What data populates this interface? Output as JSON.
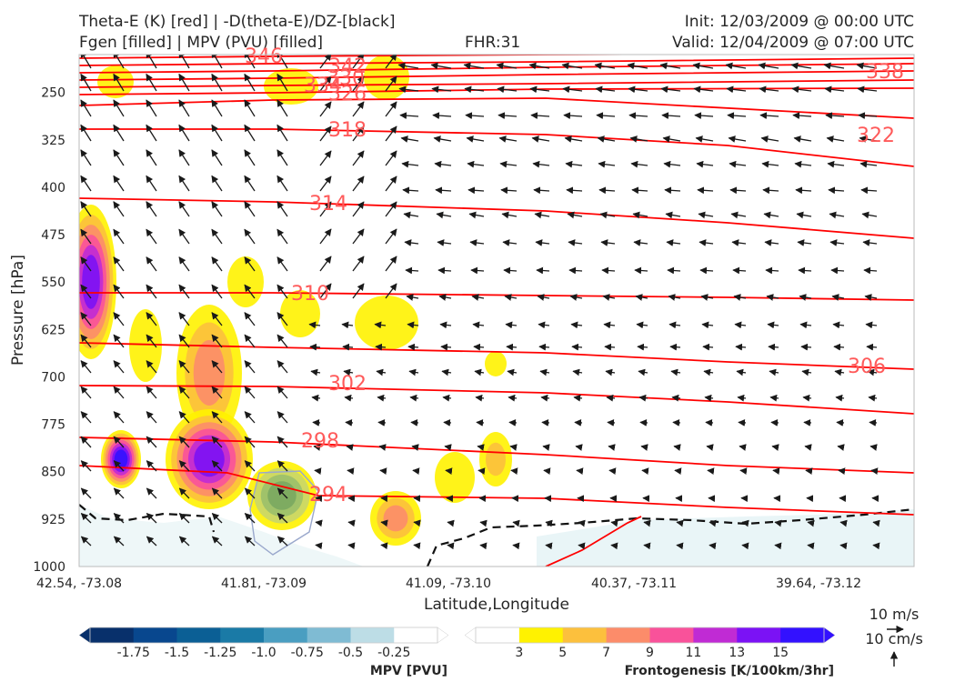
{
  "header": {
    "title_left_1": "Theta-E (K) [red] | -D(theta-E)/DZ-[black]",
    "title_left_2": "Fgen [filled] | MPV (PVU) [filled]",
    "fhr": "FHR:31",
    "init": "Init: 12/03/2009 @ 00:00 UTC",
    "valid": "Valid: 12/04/2009 @ 07:00 UTC"
  },
  "colors": {
    "theta_e": "#ff0000",
    "theta_e_label": "#ff5a5a",
    "vector": "#1a1a1a",
    "axis": "#bbbbbb",
    "mpv_zero": "#111111"
  },
  "chart_data": {
    "type": "cross-section",
    "xlabel": "Latitude,Longitude",
    "ylabel": "Pressure [hPa]",
    "x_ticks": [
      "42.54, -73.08",
      "41.81, -73.09",
      "41.09, -73.10",
      "40.37, -73.11",
      "39.64, -73.12"
    ],
    "y_ticks": [
      250,
      325,
      400,
      475,
      550,
      625,
      700,
      775,
      850,
      925,
      1000
    ],
    "ylim": [
      1000,
      190
    ],
    "theta_e_contour_labels": [
      346,
      342,
      338,
      334,
      330,
      326,
      322,
      318,
      314,
      310,
      306,
      302,
      298,
      294
    ],
    "vector_reference": {
      "wind": "10 m/s",
      "vertical": "10 cm/s"
    },
    "colorbars": [
      {
        "label": "MPV [PVU]",
        "ticks": [
          "-1.75",
          "-1.5",
          "-1.25",
          "-1.0",
          "-0.75",
          "-0.5",
          "-0.25"
        ],
        "colors": [
          "#08306b",
          "#08478e",
          "#0b5f95",
          "#1a7aa6",
          "#4a9ec1",
          "#7fbbd3",
          "#bddde6",
          "#ffffff"
        ]
      },
      {
        "label": "Frontogenesis [K/100km/3hr]",
        "ticks": [
          "3",
          "5",
          "7",
          "9",
          "11",
          "13",
          "15"
        ],
        "colors": [
          "#ffffff",
          "#fff200",
          "#fcc03d",
          "#fc8c6a",
          "#f9529a",
          "#c02bd4",
          "#7b12f5",
          "#3311ff"
        ]
      }
    ]
  }
}
